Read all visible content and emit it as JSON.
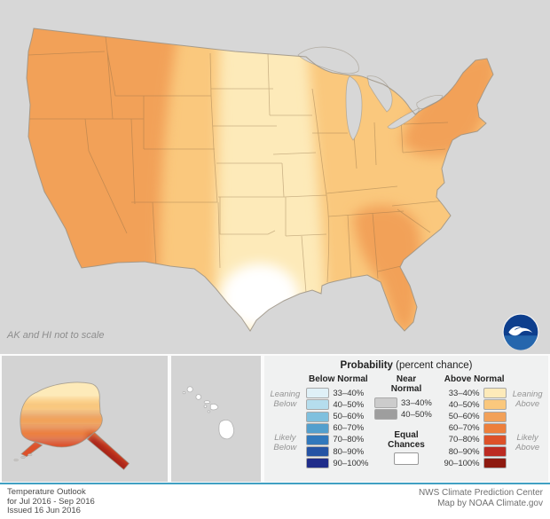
{
  "map": {
    "note": "AK and HI not to scale",
    "colors": {
      "background": "#d7d7d7",
      "p33_40": "#fdeab9",
      "p40_50": "#fac87d",
      "p50_60": "#f2a159",
      "equal_chances": "#ffffff"
    }
  },
  "alaska": {
    "colors": {
      "band1": "#fdeab9",
      "band2": "#fac87d",
      "band3": "#f2a159",
      "band4": "#ed7f3c",
      "band5": "#dd5129",
      "panhandle": "#a82017"
    }
  },
  "hawaii": {
    "island_color": "#ffffff"
  },
  "logo": {
    "name": "NOAA",
    "navy": "#0d3e8d",
    "sea": "#2566ad"
  },
  "legend": {
    "title_bold": "Probability",
    "title_note": "(percent chance)",
    "below": {
      "header": "Below Normal",
      "rows": [
        {
          "label": "33–40%",
          "color": "#dff0f7"
        },
        {
          "label": "40–50%",
          "color": "#b5dded"
        },
        {
          "label": "50–60%",
          "color": "#7fc0de"
        },
        {
          "label": "60–70%",
          "color": "#539fcd"
        },
        {
          "label": "70–80%",
          "color": "#3178bc"
        },
        {
          "label": "80–90%",
          "color": "#2553a4"
        },
        {
          "label": "90–100%",
          "color": "#202d8a"
        }
      ]
    },
    "near": {
      "header": "Near Normal",
      "rows": [
        {
          "label": "33–40%",
          "color": "#cccccc"
        },
        {
          "label": "40–50%",
          "color": "#9e9e9e"
        }
      ]
    },
    "above": {
      "header": "Above Normal",
      "rows": [
        {
          "label": "33–40%",
          "color": "#fdeab9"
        },
        {
          "label": "40–50%",
          "color": "#fac87d"
        },
        {
          "label": "50–60%",
          "color": "#f2a159"
        },
        {
          "label": "60–70%",
          "color": "#ed7f3c"
        },
        {
          "label": "70–80%",
          "color": "#dd5129"
        },
        {
          "label": "80–90%",
          "color": "#bc2b22"
        },
        {
          "label": "90–100%",
          "color": "#8e1a10"
        }
      ]
    },
    "equal": {
      "label": "Equal Chances",
      "color": "#ffffff"
    },
    "side": {
      "leaning_below": "Leaning Below",
      "likely_below": "Likely Below",
      "leaning_above": "Leaning Above",
      "likely_above": "Likely Above"
    }
  },
  "footer": {
    "rule_color": "#41a0c3",
    "left_lines": [
      "Temperature Outlook",
      "for Jul 2016 - Sep 2016",
      "Issued 16 Jun 2016"
    ],
    "right_lines": [
      "NWS Climate Prediction Center",
      "Map by NOAA Climate.gov"
    ]
  }
}
